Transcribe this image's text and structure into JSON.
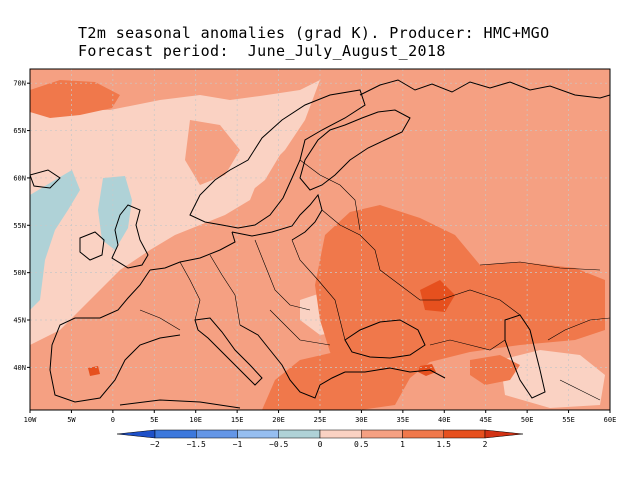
{
  "title": {
    "line1": "T2m seasonal anomalies (grad K). Producer: HMC+MGO",
    "line2": "Forecast period:  June_July_August_2018"
  },
  "map": {
    "lon_range": [
      -10,
      60
    ],
    "lat_range": [
      35.5,
      71.5
    ],
    "lon_ticks": [
      {
        "lon": -10,
        "label": "10W"
      },
      {
        "lon": -5,
        "label": "5W"
      },
      {
        "lon": 0,
        "label": "0"
      },
      {
        "lon": 5,
        "label": "5E"
      },
      {
        "lon": 10,
        "label": "10E"
      },
      {
        "lon": 15,
        "label": "15E"
      },
      {
        "lon": 20,
        "label": "20E"
      },
      {
        "lon": 25,
        "label": "25E"
      },
      {
        "lon": 30,
        "label": "30E"
      },
      {
        "lon": 35,
        "label": "35E"
      },
      {
        "lon": 40,
        "label": "40E"
      },
      {
        "lon": 45,
        "label": "45E"
      },
      {
        "lon": 50,
        "label": "50E"
      },
      {
        "lon": 55,
        "label": "55E"
      },
      {
        "lon": 60,
        "label": "60E"
      }
    ],
    "lat_ticks": [
      {
        "lat": 40,
        "label": "40N"
      },
      {
        "lat": 45,
        "label": "45N"
      },
      {
        "lat": 50,
        "label": "50N"
      },
      {
        "lat": 55,
        "label": "55N"
      },
      {
        "lat": 60,
        "label": "60N"
      },
      {
        "lat": 65,
        "label": "65N"
      },
      {
        "lat": 70,
        "label": "70N"
      }
    ]
  },
  "colorbar": {
    "levels": [
      {
        "value": -2,
        "label": "−2"
      },
      {
        "value": -1.5,
        "label": "−1.5"
      },
      {
        "value": -1,
        "label": "−1"
      },
      {
        "value": -0.5,
        "label": "−0.5"
      },
      {
        "value": 0,
        "label": "0"
      },
      {
        "value": 0.5,
        "label": "0.5"
      },
      {
        "value": 1,
        "label": "1"
      },
      {
        "value": 1.5,
        "label": "1.5"
      },
      {
        "value": 2,
        "label": "2"
      }
    ],
    "colors": [
      "#1e50c8",
      "#3c78dc",
      "#6496e6",
      "#96bef0",
      "#afd2d7",
      "#fad2c3",
      "#f5a082",
      "#f0784b",
      "#e6501e",
      "#d23214"
    ]
  }
}
